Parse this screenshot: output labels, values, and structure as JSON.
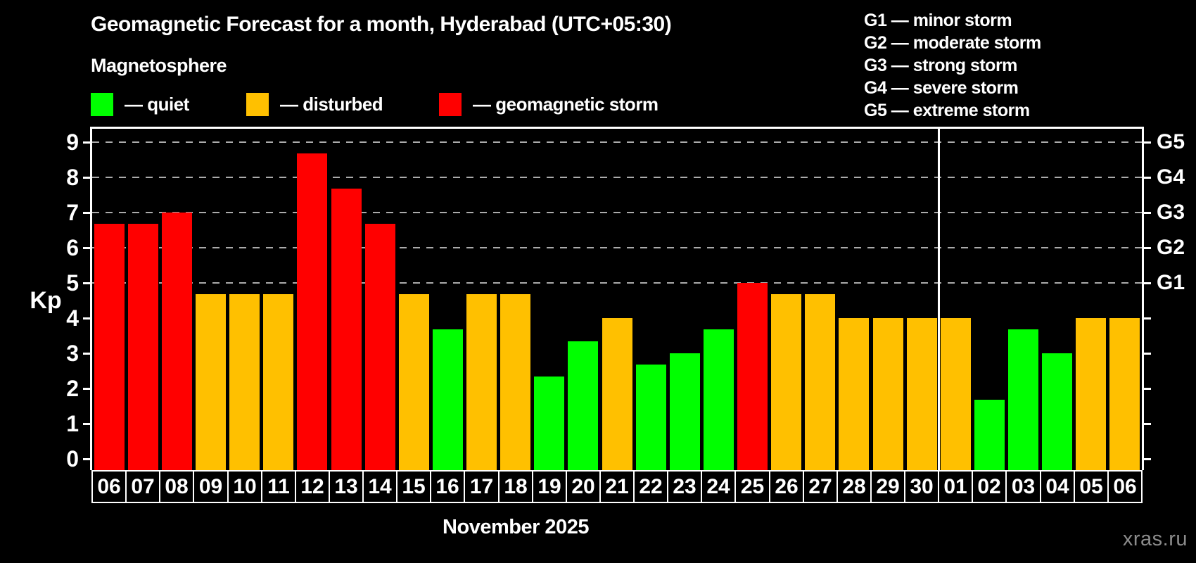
{
  "title": "Geomagnetic Forecast for a month, Hyderabad (UTC+05:30)",
  "subtitle": "Magnetosphere",
  "legend": {
    "items": [
      {
        "status": "quiet",
        "label": "— quiet",
        "color": "#00ff00"
      },
      {
        "status": "disturbed",
        "label": "— disturbed",
        "color": "#ffc000"
      },
      {
        "status": "storm",
        "label": "— geomagnetic storm",
        "color": "#ff0000"
      }
    ]
  },
  "storm_scale_legend": [
    "G1 — minor storm",
    "G2 — moderate storm",
    "G3 — strong storm",
    "G4 — severe storm",
    "G5 — extreme storm"
  ],
  "colors": {
    "quiet": "#00ff00",
    "disturbed": "#ffc000",
    "storm": "#ff0000",
    "background": "#000000",
    "grid": "#ababab",
    "axis": "#ffffff",
    "watermark": "#8c8c8c"
  },
  "chart_data": {
    "type": "bar",
    "title": "Geomagnetic Forecast for a month, Hyderabad (UTC+05:30)",
    "xlabel": "November 2025",
    "ylabel": "Kp",
    "ylim": [
      0,
      9
    ],
    "yticks": [
      0,
      1,
      2,
      3,
      4,
      5,
      6,
      7,
      8,
      9
    ],
    "grid_kp_levels": [
      5,
      6,
      7,
      8,
      9
    ],
    "grid_on": true,
    "right_axis": {
      "labels": [
        "G1",
        "G2",
        "G3",
        "G4",
        "G5"
      ],
      "kp_levels": [
        5,
        6,
        7,
        8,
        9
      ]
    },
    "categories": [
      "06",
      "07",
      "08",
      "09",
      "10",
      "11",
      "12",
      "13",
      "14",
      "15",
      "16",
      "17",
      "18",
      "19",
      "20",
      "21",
      "22",
      "23",
      "24",
      "25",
      "26",
      "27",
      "28",
      "29",
      "30",
      "01",
      "02",
      "03",
      "04",
      "05",
      "06"
    ],
    "values": [
      6.67,
      6.67,
      7.0,
      4.67,
      4.67,
      4.67,
      8.67,
      7.67,
      6.67,
      4.67,
      3.67,
      4.67,
      4.67,
      2.33,
      3.33,
      4.0,
      2.67,
      3.0,
      3.67,
      5.0,
      4.67,
      4.67,
      4.0,
      4.0,
      4.0,
      4.0,
      1.67,
      3.67,
      3.0,
      4.0,
      4.0
    ],
    "statuses": [
      "storm",
      "storm",
      "storm",
      "disturbed",
      "disturbed",
      "disturbed",
      "storm",
      "storm",
      "storm",
      "disturbed",
      "quiet",
      "disturbed",
      "disturbed",
      "quiet",
      "quiet",
      "disturbed",
      "quiet",
      "quiet",
      "quiet",
      "storm",
      "disturbed",
      "disturbed",
      "disturbed",
      "disturbed",
      "disturbed",
      "disturbed",
      "quiet",
      "quiet",
      "quiet",
      "disturbed",
      "disturbed"
    ],
    "month_separator_after_index": 24,
    "legend_position": "top-left"
  },
  "footer": {
    "caption": "November 2025",
    "watermark": "xras.ru"
  }
}
